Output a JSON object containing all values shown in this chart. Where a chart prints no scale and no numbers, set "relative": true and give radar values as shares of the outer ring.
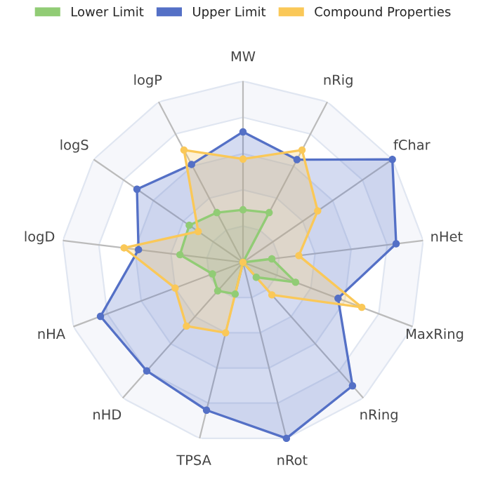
{
  "chart_data": {
    "type": "radar",
    "relative": true,
    "legend": "top",
    "grid": true,
    "marker": "circle",
    "categories": [
      "MW",
      "nRig",
      "fChar",
      "nHet",
      "MaxRing",
      "nRing",
      "nRot",
      "TPSA",
      "nHD",
      "nHA",
      "logD",
      "logS",
      "logP"
    ],
    "series": [
      {
        "name": "Lower Limit",
        "color": "#91cc75",
        "values": [
          0.29,
          0.31,
          0,
          0.16,
          0.31,
          0.11,
          0,
          0.18,
          0.21,
          0.18,
          0.35,
          0.36,
          0.31
        ]
      },
      {
        "name": "Upper Limit",
        "color": "#5470c6",
        "values": [
          0.72,
          0.64,
          1.0,
          0.85,
          0.56,
          0.91,
          1.0,
          0.84,
          0.8,
          0.84,
          0.58,
          0.71,
          0.61
        ]
      },
      {
        "name": "Compound Properties",
        "color": "#fac858",
        "values": [
          0.57,
          0.7,
          0.5,
          0.31,
          0.7,
          0.24,
          0,
          0.4,
          0.47,
          0.4,
          0.66,
          0.3,
          0.7
        ]
      }
    ]
  }
}
